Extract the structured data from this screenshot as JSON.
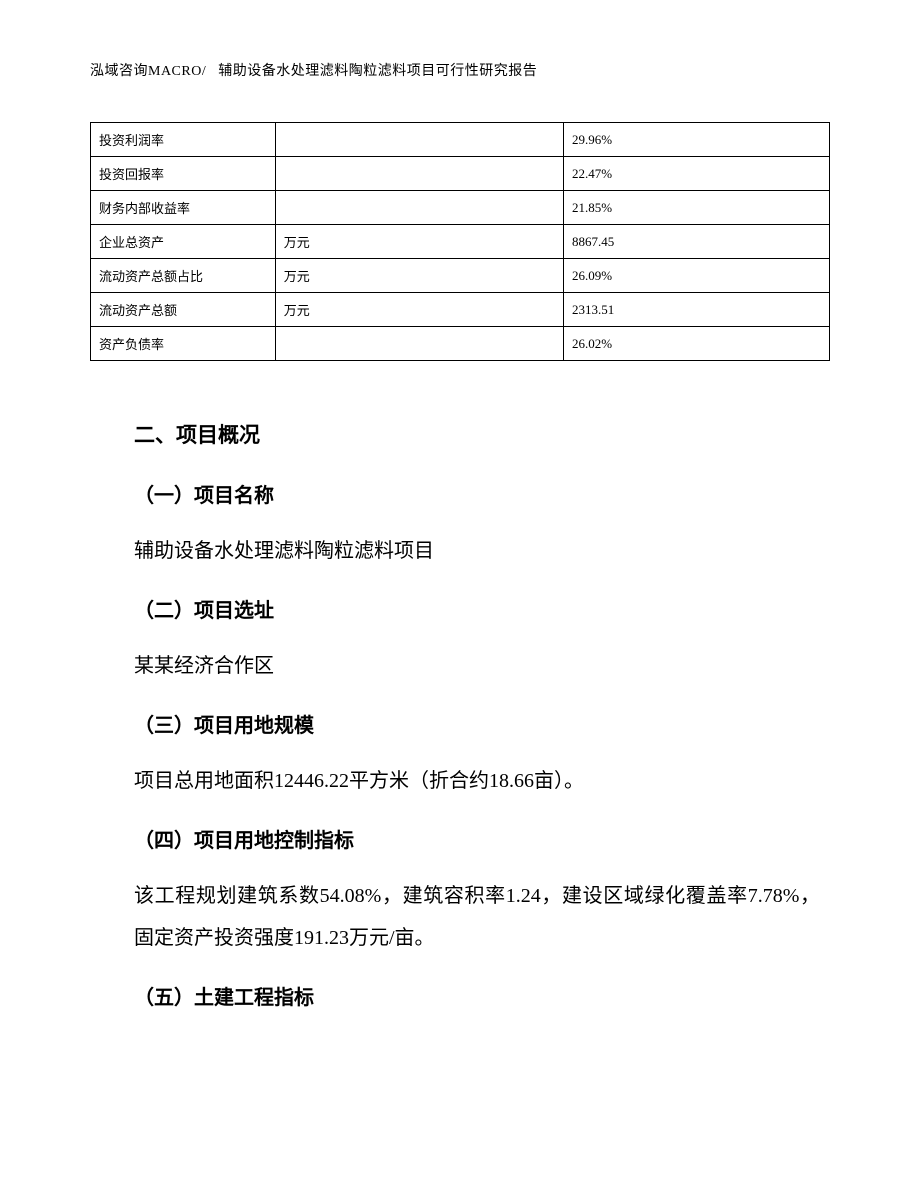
{
  "header": {
    "company": "泓域咨询MACRO/",
    "title": "辅助设备水处理滤料陶粒滤料项目可行性研究报告"
  },
  "table": {
    "type": "table",
    "font_size": 13,
    "border_color": "#000000",
    "background_color": "#ffffff",
    "columns": [
      {
        "key": "label",
        "width_pct": 25
      },
      {
        "key": "unit",
        "width_pct": 39
      },
      {
        "key": "value",
        "width_pct": 36
      }
    ],
    "rows": [
      {
        "label": "投资利润率",
        "unit": "",
        "value": "29.96%"
      },
      {
        "label": "投资回报率",
        "unit": "",
        "value": "22.47%"
      },
      {
        "label": "财务内部收益率",
        "unit": "",
        "value": "21.85%"
      },
      {
        "label": "企业总资产",
        "unit": "万元",
        "value": "8867.45"
      },
      {
        "label": "流动资产总额占比",
        "unit": "万元",
        "value": "26.09%"
      },
      {
        "label": "流动资产总额",
        "unit": "万元",
        "value": "2313.51"
      },
      {
        "label": "资产负债率",
        "unit": "",
        "value": "26.02%"
      }
    ]
  },
  "sections": {
    "main_title": "二、项目概况",
    "sub1_title": "（一）项目名称",
    "sub1_body": "辅助设备水处理滤料陶粒滤料项目",
    "sub2_title": "（二）项目选址",
    "sub2_body": "某某经济合作区",
    "sub3_title": "（三）项目用地规模",
    "sub3_body": "项目总用地面积12446.22平方米（折合约18.66亩）。",
    "sub4_title": "（四）项目用地控制指标",
    "sub4_body": "该工程规划建筑系数54.08%，建筑容积率1.24，建设区域绿化覆盖率7.78%，固定资产投资强度191.23万元/亩。",
    "sub5_title": "（五）土建工程指标"
  },
  "style": {
    "page_bg": "#ffffff",
    "text_color": "#000000",
    "body_font_size": 20,
    "heading_font_size": 21,
    "table_font_size": 13,
    "line_height": 2.1
  }
}
